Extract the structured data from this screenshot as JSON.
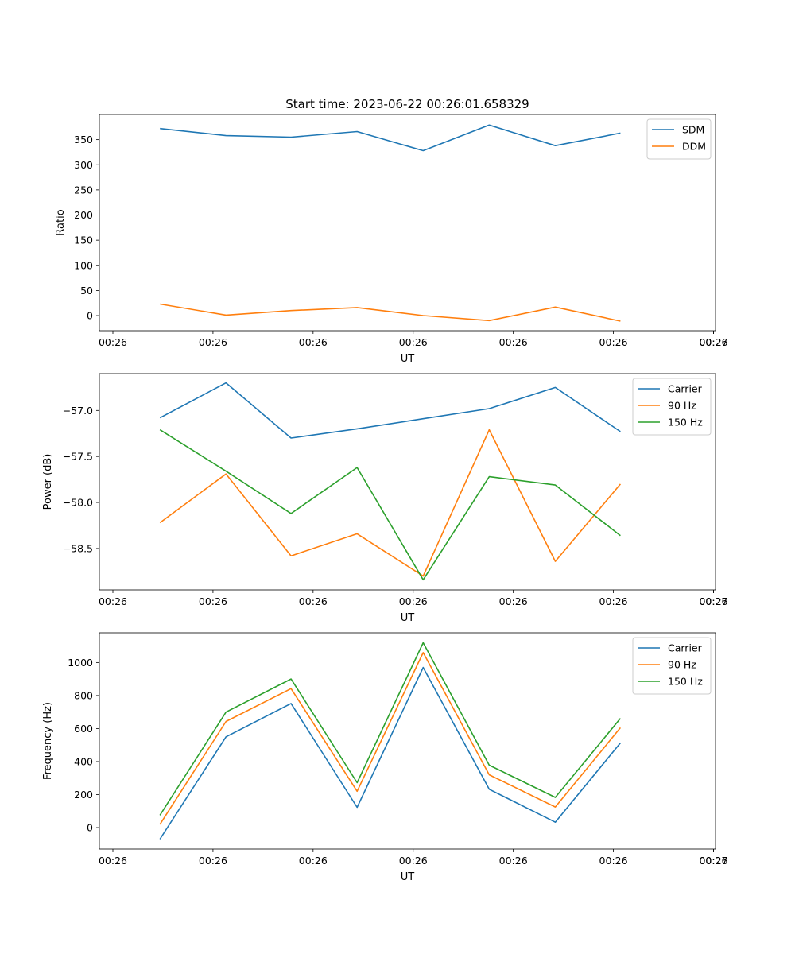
{
  "figure_title": "Start time: 2023-06-22 00:26:01.658329",
  "chart_data": [
    {
      "type": "line",
      "title": "Start time: 2023-06-22 00:26:01.658329",
      "xlabel": "UT",
      "ylabel": "Ratio",
      "x_tick_labels": [
        "00:26",
        "00:26",
        "00:26",
        "00:26",
        "00:26",
        "00:26",
        "00:26"
      ],
      "x_tick_values_s": [
        0,
        1,
        2,
        3,
        4,
        5,
        6
      ],
      "xlim_s": [
        -0.135,
        6.02
      ],
      "x_s": [
        0.47,
        1.13,
        1.78,
        2.44,
        3.1,
        3.76,
        4.42,
        5.07
      ],
      "ylim": [
        -30,
        400
      ],
      "yticks": [
        0,
        50,
        100,
        150,
        200,
        250,
        300,
        350
      ],
      "grid": false,
      "legend_position": "top-right",
      "series": [
        {
          "name": "SDM",
          "color": "#1f77b4",
          "values": [
            372,
            358,
            355,
            366,
            328,
            379,
            338,
            363
          ]
        },
        {
          "name": "DDM",
          "color": "#ff7f0e",
          "values": [
            23,
            1,
            10,
            16,
            0,
            -10,
            17,
            -11
          ]
        }
      ]
    },
    {
      "type": "line",
      "title": "",
      "xlabel": "UT",
      "ylabel": "Power (dB)",
      "x_tick_labels": [
        "00:26",
        "00:26",
        "00:26",
        "00:26",
        "00:26",
        "00:26",
        "00:26"
      ],
      "x_tick_values_s": [
        0,
        1,
        2,
        3,
        4,
        5,
        6
      ],
      "xlim_s": [
        -0.135,
        6.02
      ],
      "x_s": [
        0.47,
        1.13,
        1.78,
        2.44,
        3.1,
        3.76,
        4.42,
        5.07
      ],
      "ylim": [
        -58.95,
        -56.6
      ],
      "yticks": [
        -58.5,
        -58.0,
        -57.5,
        -57.0
      ],
      "ytick_labels": [
        "−58.5",
        "−58.0",
        "−57.5",
        "−57.0"
      ],
      "grid": false,
      "legend_position": "top-right",
      "series": [
        {
          "name": "Carrier",
          "color": "#1f77b4",
          "values": [
            -57.08,
            -56.7,
            -57.3,
            -57.2,
            -57.09,
            -56.98,
            -56.75,
            -57.23
          ]
        },
        {
          "name": "90 Hz",
          "color": "#ff7f0e",
          "values": [
            -58.22,
            -57.69,
            -58.58,
            -58.34,
            -58.8,
            -57.21,
            -58.64,
            -57.8
          ]
        },
        {
          "name": "150 Hz",
          "color": "#2ca02c",
          "values": [
            -57.21,
            -57.66,
            -58.12,
            -57.62,
            -58.84,
            -57.72,
            -57.81,
            -58.36
          ]
        }
      ]
    },
    {
      "type": "line",
      "title": "",
      "xlabel": "UT",
      "ylabel": "Frequency (Hz)",
      "x_tick_labels": [
        "00:26",
        "00:26",
        "00:26",
        "00:26",
        "00:26",
        "00:26",
        "00:26"
      ],
      "x_tick_values_s": [
        0,
        1,
        2,
        3,
        4,
        5,
        6
      ],
      "xlim_s": [
        -0.135,
        6.02
      ],
      "x_s": [
        0.47,
        1.13,
        1.78,
        2.44,
        3.1,
        3.76,
        4.42,
        5.07
      ],
      "ylim": [
        -130,
        1180
      ],
      "yticks": [
        0,
        200,
        400,
        600,
        800,
        1000
      ],
      "grid": false,
      "legend_position": "top-right",
      "series": [
        {
          "name": "Carrier",
          "color": "#1f77b4",
          "values": [
            -70,
            550,
            752,
            123,
            970,
            232,
            33,
            513
          ]
        },
        {
          "name": "90 Hz",
          "color": "#ff7f0e",
          "values": [
            20,
            643,
            842,
            220,
            1060,
            320,
            125,
            605
          ]
        },
        {
          "name": "150 Hz",
          "color": "#2ca02c",
          "values": [
            75,
            700,
            900,
            272,
            1120,
            378,
            183,
            662
          ]
        }
      ]
    }
  ],
  "x_end_tick_label": "00:27"
}
